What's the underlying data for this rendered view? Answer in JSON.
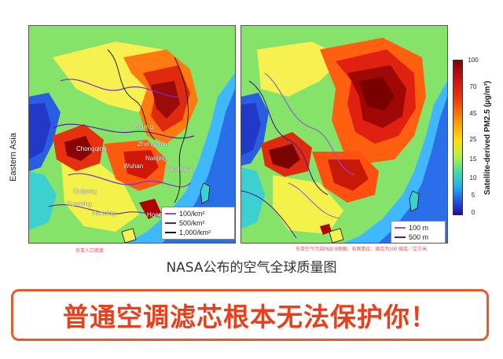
{
  "side_label": "Eastern Asia",
  "left_map": {
    "cities": [
      "Beijing",
      "Zhengzhou",
      "Chongqing",
      "Nanjing",
      "Wuhan",
      "Shanghai",
      "Guiyang",
      "Kunming",
      "Nanning",
      "Hong Kong"
    ],
    "legend": [
      "100/km²",
      "500/km²",
      "1,000/km²"
    ],
    "legend_colors": [
      "#9a4fd8",
      "#4a1a9a",
      "#111111"
    ],
    "caption": "东亚人口密度"
  },
  "right_map": {
    "legend": [
      "100 m",
      "500 m"
    ],
    "legend_colors": [
      "#9a4fd8",
      "#4a1a9a"
    ],
    "caption": "东亚空气污染PM2.5地图，右侧单位：微克为100 微克／立方米"
  },
  "colorbar": {
    "ticks": [
      "100",
      "70",
      "45",
      "25",
      "15",
      "10",
      "5",
      "0"
    ],
    "title": "Satellite-derived PM2.5 (µg/m³)",
    "colors": [
      "#8a0000",
      "#d01010",
      "#f03a00",
      "#ff9a00",
      "#ffe000",
      "#b8f040",
      "#40e0a0",
      "#20b0f0",
      "#2050e8",
      "#2010a0"
    ]
  },
  "caption_main": "NASA公布的空气全球质量图",
  "banner_text": "普通空调滤芯根本无法保护你！"
}
